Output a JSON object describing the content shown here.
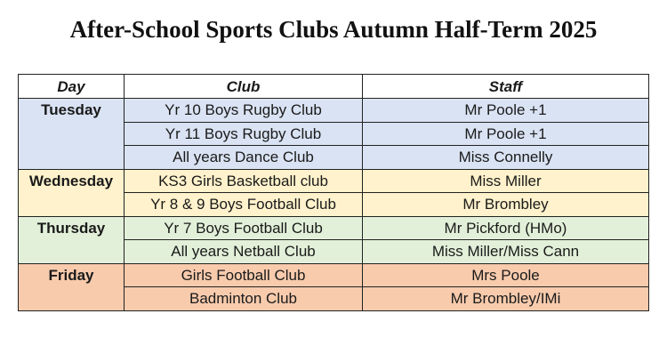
{
  "title": "After-School Sports Clubs Autumn Half-Term 2025",
  "colors": {
    "tuesday": "#dae3f3",
    "wednesday": "#fff2cc",
    "thursday": "#e2f0d9",
    "friday": "#f8cbad"
  },
  "headers": {
    "day": "Day",
    "club": "Club",
    "staff": "Staff"
  },
  "days": [
    {
      "day": "Tuesday",
      "rows": [
        {
          "club": "Yr 10 Boys Rugby Club",
          "staff": "Mr Poole +1"
        },
        {
          "club": "Yr 11 Boys Rugby Club",
          "staff": "Mr Poole +1"
        },
        {
          "club": "All years Dance Club",
          "staff": "Miss Connelly"
        }
      ]
    },
    {
      "day": "Wednesday",
      "rows": [
        {
          "club": "KS3 Girls Basketball club",
          "staff": "Miss Miller"
        },
        {
          "club": "Yr 8 & 9 Boys Football Club",
          "staff": "Mr Brombley"
        }
      ]
    },
    {
      "day": "Thursday",
      "rows": [
        {
          "club": "Yr 7 Boys Football Club",
          "staff": "Mr Pickford (HMo)"
        },
        {
          "club": "All years Netball Club",
          "staff": "Miss Miller/Miss Cann"
        }
      ]
    },
    {
      "day": "Friday",
      "rows": [
        {
          "club": "Girls Football Club",
          "staff": "Mrs Poole"
        },
        {
          "club": "Badminton Club",
          "staff": "Mr Brombley/IMi"
        }
      ]
    }
  ]
}
